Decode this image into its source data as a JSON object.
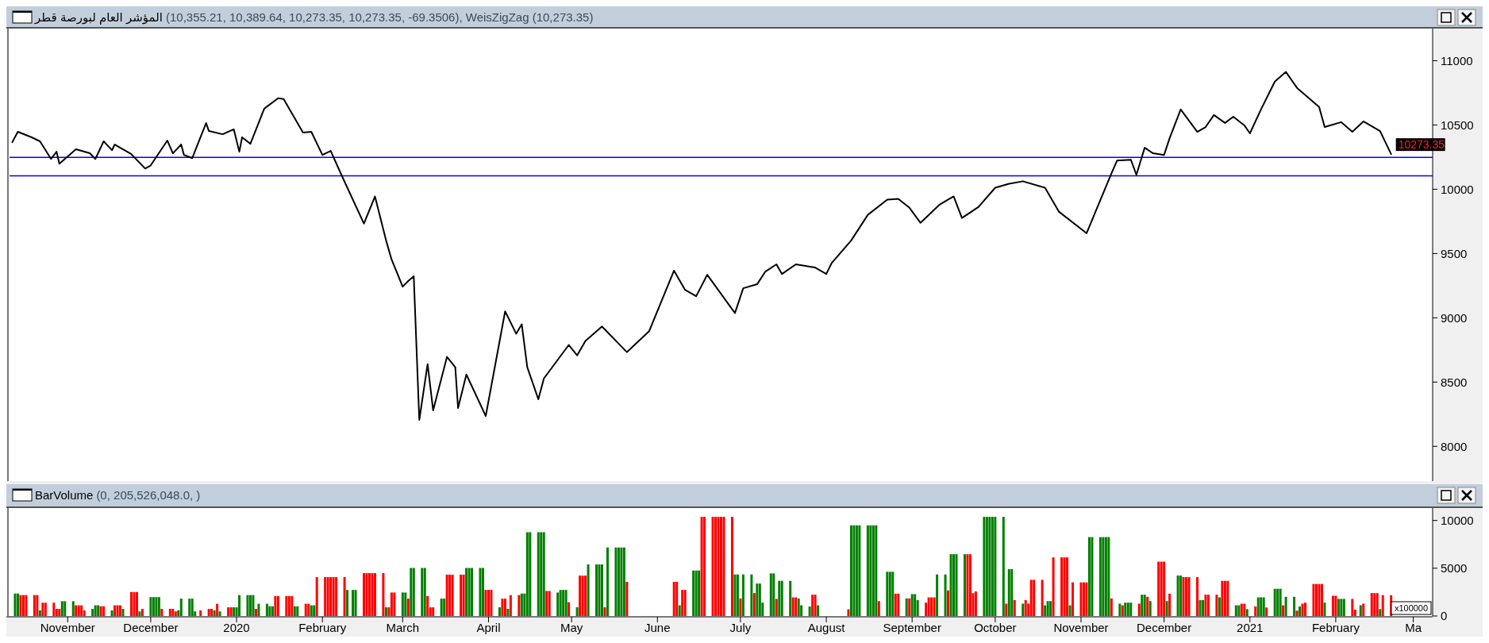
{
  "chart_data": [
    {
      "type": "line",
      "title": "المؤشر العام لبورصة قطر",
      "subtitle": "(10,355.21, 10,389.64, 10,273.35, 10,273.35, -69.3506), WeisZigZag (10,273.35)",
      "color": "#000000",
      "tick_labels": "y",
      "x": [
        "2019-10-12",
        "2019-10-14",
        "2019-10-19",
        "2019-10-22",
        "2019-10-26",
        "2019-10-28",
        "2019-10-29",
        "2019-11-04",
        "2019-11-09",
        "2019-11-11",
        "2019-11-14",
        "2019-11-17",
        "2019-11-18",
        "2019-11-24",
        "2019-11-29",
        "2019-12-01",
        "2019-12-07",
        "2019-12-09",
        "2019-12-12",
        "2019-12-13",
        "2019-12-16",
        "2019-12-21",
        "2019-12-22",
        "2019-12-27",
        "2019-12-31",
        "2020-01-02",
        "2020-01-03",
        "2020-01-06",
        "2020-01-11",
        "2020-01-16",
        "2020-01-18",
        "2020-01-25",
        "2020-01-28",
        "2020-02-01",
        "2020-02-04",
        "2020-02-08",
        "2020-02-16",
        "2020-02-20",
        "2020-02-24",
        "2020-02-26",
        "2020-03-01",
        "2020-03-03",
        "2020-03-05",
        "2020-03-07",
        "2020-03-10",
        "2020-03-12",
        "2020-03-17",
        "2020-03-20",
        "2020-03-21",
        "2020-03-24",
        "2020-03-31",
        "2020-04-07",
        "2020-04-11",
        "2020-04-13",
        "2020-04-15",
        "2020-04-19",
        "2020-04-21",
        "2020-04-30",
        "2020-05-03",
        "2020-05-06",
        "2020-05-12",
        "2020-05-21",
        "2020-05-29",
        "2020-06-07",
        "2020-06-11",
        "2020-06-15",
        "2020-06-19",
        "2020-06-29",
        "2020-07-02",
        "2020-07-07",
        "2020-07-10",
        "2020-07-14",
        "2020-07-16",
        "2020-07-21",
        "2020-07-28",
        "2020-08-01",
        "2020-08-03",
        "2020-08-10",
        "2020-08-16",
        "2020-08-23",
        "2020-08-27",
        "2020-08-31",
        "2020-09-04",
        "2020-09-11",
        "2020-09-16",
        "2020-09-19",
        "2020-09-25",
        "2020-10-01",
        "2020-10-06",
        "2020-10-11",
        "2020-10-19",
        "2020-10-24",
        "2020-11-03",
        "2020-11-12",
        "2020-11-14",
        "2020-11-19",
        "2020-11-21",
        "2020-11-24",
        "2020-11-27",
        "2020-12-01",
        "2020-12-03",
        "2020-12-07",
        "2020-12-13",
        "2020-12-16",
        "2020-12-19",
        "2020-12-23",
        "2020-12-26",
        "2020-12-30",
        "2021-01-01",
        "2021-01-05",
        "2021-01-10",
        "2021-01-14",
        "2021-01-18",
        "2021-01-26",
        "2021-01-28",
        "2021-02-03",
        "2021-02-07",
        "2021-02-11",
        "2021-02-17",
        "2021-02-21"
      ],
      "values": [
        10366,
        10447,
        10404,
        10373,
        10236,
        10292,
        10199,
        10311,
        10280,
        10236,
        10373,
        10304,
        10348,
        10273,
        10161,
        10186,
        10379,
        10280,
        10348,
        10267,
        10242,
        10515,
        10453,
        10428,
        10466,
        10292,
        10404,
        10354,
        10627,
        10708,
        10702,
        10441,
        10447,
        10267,
        10298,
        10106,
        9733,
        9944,
        9602,
        9453,
        9242,
        9286,
        9323,
        8205,
        8640,
        8280,
        8696,
        8615,
        8298,
        8559,
        8236,
        9050,
        8876,
        8950,
        8615,
        8366,
        8528,
        8789,
        8708,
        8820,
        8932,
        8733,
        8895,
        9367,
        9217,
        9168,
        9335,
        9037,
        9230,
        9261,
        9360,
        9416,
        9341,
        9416,
        9391,
        9341,
        9428,
        9602,
        9801,
        9919,
        9925,
        9857,
        9739,
        9882,
        9944,
        9776,
        9863,
        10012,
        10043,
        10062,
        10012,
        9826,
        9658,
        10124,
        10223,
        10230,
        10112,
        10323,
        10280,
        10267,
        10397,
        10621,
        10447,
        10484,
        10578,
        10516,
        10565,
        10497,
        10435,
        10621,
        10838,
        10913,
        10789,
        10640,
        10484,
        10522,
        10447,
        10528,
        10453,
        10273.35
      ],
      "xlim": [
        "2019-10-11",
        "2021-03-08"
      ],
      "ylim": [
        7730,
        11250
      ],
      "yticks": [
        8000,
        8500,
        9000,
        9500,
        10000,
        10500,
        11000
      ],
      "ref_lines": [
        {
          "axis": "y",
          "value": 10248,
          "color": "#0000ff"
        },
        {
          "axis": "y",
          "value": 10105,
          "color": "#0000ff"
        }
      ],
      "annotations": [
        {
          "text": "10273.35",
          "x": "2021-02-21",
          "y": 10273.35
        }
      ]
    },
    {
      "type": "bar",
      "title": "BarVolume",
      "subtitle": "(0, 205,526,048.0, )",
      "x": [
        "2019-10-13",
        "2019-10-14",
        "2019-10-15",
        "2019-10-16",
        "2019-10-17",
        "2019-10-20",
        "2019-10-21",
        "2019-10-22",
        "2019-10-23",
        "2019-10-24",
        "2019-10-27",
        "2019-10-28",
        "2019-10-29",
        "2019-10-30",
        "2019-10-31",
        "2019-11-03",
        "2019-11-04",
        "2019-11-05",
        "2019-11-06",
        "2019-11-07",
        "2019-11-10",
        "2019-11-11",
        "2019-11-12",
        "2019-11-13",
        "2019-11-14",
        "2019-11-17",
        "2019-11-18",
        "2019-11-19",
        "2019-11-20",
        "2019-11-21",
        "2019-11-24",
        "2019-11-25",
        "2019-11-26",
        "2019-11-27",
        "2019-11-28",
        "2019-12-01",
        "2019-12-02",
        "2019-12-03",
        "2019-12-04",
        "2019-12-05",
        "2019-12-08",
        "2019-12-09",
        "2019-12-10",
        "2019-12-11",
        "2019-12-12",
        "2019-12-15",
        "2019-12-16",
        "2019-12-17",
        "2019-12-19",
        "2019-12-22",
        "2019-12-23",
        "2019-12-24",
        "2019-12-25",
        "2019-12-26",
        "2019-12-29",
        "2019-12-30",
        "2019-12-31",
        "2020-01-01",
        "2020-01-02",
        "2020-01-05",
        "2020-01-06",
        "2020-01-07",
        "2020-01-08",
        "2020-01-09",
        "2020-01-12",
        "2020-01-13",
        "2020-01-14",
        "2020-01-15",
        "2020-01-16",
        "2020-01-19",
        "2020-01-20",
        "2020-01-21",
        "2020-01-22",
        "2020-01-23",
        "2020-01-26",
        "2020-01-27",
        "2020-01-28",
        "2020-01-29",
        "2020-01-30",
        "2020-02-02",
        "2020-02-03",
        "2020-02-04",
        "2020-02-05",
        "2020-02-06",
        "2020-02-09",
        "2020-02-10",
        "2020-02-12",
        "2020-02-13",
        "2020-02-16",
        "2020-02-17",
        "2020-02-18",
        "2020-02-19",
        "2020-02-20",
        "2020-02-23",
        "2020-02-24",
        "2020-02-25",
        "2020-02-26",
        "2020-02-27",
        "2020-03-01",
        "2020-03-02",
        "2020-03-03",
        "2020-03-04",
        "2020-03-05",
        "2020-03-08",
        "2020-03-09",
        "2020-03-10",
        "2020-03-11",
        "2020-03-12",
        "2020-03-15",
        "2020-03-16",
        "2020-03-17",
        "2020-03-18",
        "2020-03-19",
        "2020-03-22",
        "2020-03-23",
        "2020-03-24",
        "2020-03-25",
        "2020-03-26",
        "2020-03-29",
        "2020-03-30",
        "2020-03-31",
        "2020-04-01",
        "2020-04-02",
        "2020-04-05",
        "2020-04-06",
        "2020-04-07",
        "2020-04-08",
        "2020-04-09",
        "2020-04-12",
        "2020-04-13",
        "2020-04-14",
        "2020-04-15",
        "2020-04-16",
        "2020-04-19",
        "2020-04-20",
        "2020-04-21",
        "2020-04-22",
        "2020-04-23",
        "2020-04-26",
        "2020-04-27",
        "2020-04-28",
        "2020-04-29",
        "2020-04-30",
        "2020-05-03",
        "2020-05-04",
        "2020-05-05",
        "2020-05-06",
        "2020-05-07",
        "2020-05-10",
        "2020-05-11",
        "2020-05-12",
        "2020-05-13",
        "2020-05-14",
        "2020-05-17",
        "2020-05-18",
        "2020-05-19",
        "2020-05-20",
        "2020-05-21",
        "2020-06-07",
        "2020-06-08",
        "2020-06-09",
        "2020-06-10",
        "2020-06-11",
        "2020-06-14",
        "2020-06-15",
        "2020-06-16",
        "2020-06-17",
        "2020-06-18",
        "2020-06-21",
        "2020-06-22",
        "2020-06-23",
        "2020-06-24",
        "2020-06-25",
        "2020-06-28",
        "2020-06-29",
        "2020-06-30",
        "2020-07-01",
        "2020-07-02",
        "2020-07-05",
        "2020-07-06",
        "2020-07-07",
        "2020-07-08",
        "2020-07-09",
        "2020-07-12",
        "2020-07-13",
        "2020-07-14",
        "2020-07-15",
        "2020-07-16",
        "2020-07-19",
        "2020-07-20",
        "2020-07-21",
        "2020-07-22",
        "2020-07-23",
        "2020-07-26",
        "2020-07-27",
        "2020-07-28",
        "2020-07-29",
        "2020-08-09",
        "2020-08-10",
        "2020-08-11",
        "2020-08-12",
        "2020-08-13",
        "2020-08-16",
        "2020-08-17",
        "2020-08-18",
        "2020-08-19",
        "2020-08-20",
        "2020-08-23",
        "2020-08-24",
        "2020-08-25",
        "2020-08-26",
        "2020-08-27",
        "2020-08-30",
        "2020-08-31",
        "2020-09-01",
        "2020-09-02",
        "2020-09-03",
        "2020-09-06",
        "2020-09-07",
        "2020-09-08",
        "2020-09-09",
        "2020-09-10",
        "2020-09-13",
        "2020-09-14",
        "2020-09-15",
        "2020-09-16",
        "2020-09-17",
        "2020-09-20",
        "2020-09-21",
        "2020-09-22",
        "2020-09-23",
        "2020-09-24",
        "2020-09-27",
        "2020-09-28",
        "2020-09-29",
        "2020-09-30",
        "2020-10-01",
        "2020-10-04",
        "2020-10-05",
        "2020-10-06",
        "2020-10-07",
        "2020-10-08",
        "2020-10-11",
        "2020-10-12",
        "2020-10-13",
        "2020-10-14",
        "2020-10-15",
        "2020-10-18",
        "2020-10-19",
        "2020-10-20",
        "2020-10-21",
        "2020-10-22",
        "2020-10-25",
        "2020-10-26",
        "2020-10-27",
        "2020-10-28",
        "2020-10-29",
        "2020-11-01",
        "2020-11-02",
        "2020-11-03",
        "2020-11-04",
        "2020-11-05",
        "2020-11-08",
        "2020-11-09",
        "2020-11-10",
        "2020-11-11",
        "2020-11-12",
        "2020-11-15",
        "2020-11-16",
        "2020-11-17",
        "2020-11-18",
        "2020-11-19",
        "2020-11-22",
        "2020-11-23",
        "2020-11-24",
        "2020-11-25",
        "2020-11-26",
        "2020-11-29",
        "2020-11-30",
        "2020-12-01",
        "2020-12-02",
        "2020-12-03",
        "2020-12-06",
        "2020-12-07",
        "2020-12-08",
        "2020-12-09",
        "2020-12-10",
        "2020-12-13",
        "2020-12-14",
        "2020-12-15",
        "2020-12-16",
        "2020-12-17",
        "2020-12-20",
        "2020-12-21",
        "2020-12-22",
        "2020-12-23",
        "2020-12-24",
        "2020-12-27",
        "2020-12-28",
        "2020-12-29",
        "2020-12-30",
        "2020-12-31",
        "2021-01-03",
        "2021-01-04",
        "2021-01-05",
        "2021-01-06",
        "2021-01-07",
        "2021-01-10",
        "2021-01-11",
        "2021-01-12",
        "2021-01-13",
        "2021-01-14",
        "2021-01-17",
        "2021-01-18",
        "2021-01-19",
        "2021-01-20",
        "2021-01-21",
        "2021-01-24",
        "2021-01-25",
        "2021-01-26",
        "2021-01-27",
        "2021-01-28",
        "2021-01-31",
        "2021-02-01",
        "2021-02-02",
        "2021-02-03",
        "2021-02-04",
        "2021-02-07",
        "2021-02-08",
        "2021-02-10",
        "2021-02-11",
        "2021-02-14",
        "2021-02-15",
        "2021-02-16",
        "2021-02-17",
        "2021-02-18",
        "2021-02-21"
      ],
      "values": [
        2350,
        2350,
        2190,
        2190,
        2190,
        2190,
        2190,
        590,
        1390,
        1390,
        1390,
        750,
        750,
        1550,
        1550,
        1550,
        1120,
        1120,
        1120,
        590,
        750,
        1120,
        1120,
        1020,
        1020,
        590,
        1120,
        1120,
        1120,
        750,
        2510,
        2510,
        2510,
        480,
        750,
        1980,
        1980,
        1980,
        1980,
        750,
        750,
        750,
        480,
        590,
        1820,
        1820,
        1820,
        480,
        590,
        750,
        750,
        590,
        1280,
        480,
        910,
        910,
        910,
        910,
        2190,
        2190,
        2190,
        2190,
        750,
        1280,
        1280,
        1020,
        1020,
        2090,
        2090,
        2090,
        2090,
        2090,
        1020,
        1020,
        1280,
        1280,
        1120,
        1120,
        4070,
        4070,
        4070,
        4070,
        4070,
        4070,
        4070,
        2730,
        2730,
        2730,
        4490,
        4490,
        4490,
        4490,
        4490,
        4490,
        910,
        910,
        2460,
        2460,
        2460,
        2460,
        1820,
        5030,
        5030,
        5030,
        5030,
        2090,
        910,
        910,
        1820,
        1820,
        4330,
        4330,
        4330,
        4330,
        4330,
        5030,
        5030,
        5030,
        5030,
        5030,
        2730,
        2730,
        2730,
        910,
        1820,
        1820,
        750,
        2190,
        2190,
        2350,
        2350,
        8770,
        8770,
        8770,
        8770,
        8770,
        2620,
        2620,
        2460,
        2730,
        2730,
        2730,
        1440,
        910,
        4230,
        4230,
        4230,
        5400,
        5400,
        5400,
        5400,
        910,
        7170,
        7170,
        7170,
        7170,
        7170,
        3580,
        3580,
        3580,
        1120,
        2730,
        2730,
        4760,
        4760,
        4760,
        10380,
        10380,
        10380,
        10380,
        10380,
        10380,
        10380,
        10380,
        4350,
        4350,
        1840,
        4350,
        4350,
        2400,
        3400,
        3400,
        1400,
        4460,
        4460,
        1790,
        3680,
        3680,
        3680,
        1950,
        1950,
        1840,
        1120,
        1000,
        2230,
        2230,
        1120,
        700,
        9490,
        9490,
        9490,
        9490,
        9490,
        9490,
        9490,
        9490,
        1560,
        4630,
        4630,
        4630,
        2340,
        2340,
        1840,
        1840,
        2290,
        2290,
        1670,
        1400,
        1950,
        1950,
        1950,
        4350,
        4350,
        2680,
        6470,
        6470,
        6470,
        6470,
        6470,
        6470,
        2390,
        2570,
        10380,
        10380,
        10380,
        10380,
        10380,
        10380,
        1290,
        4910,
        4910,
        1670,
        1290,
        1670,
        1290,
        3790,
        3790,
        3790,
        1120,
        1560,
        1560,
        6140,
        6140,
        6140,
        6140,
        1120,
        3520,
        3520,
        3520,
        3520,
        8260,
        8260,
        8260,
        8260,
        8260,
        8260,
        1840,
        1290,
        1120,
        1400,
        1400,
        1400,
        1290,
        2230,
        2230,
        2010,
        1560,
        5690,
        5690,
        5690,
        1560,
        2340,
        4240,
        4240,
        4070,
        4070,
        4070,
        4070,
        1670,
        1670,
        2230,
        2230,
        2230,
        1950,
        3680,
        3680,
        3680,
        1120,
        1120,
        1290,
        1290,
        720,
        1000,
        1950,
        1950,
        1950,
        890,
        2850,
        2850,
        2850,
        1120,
        2010,
        2010,
        560,
        1000,
        1290,
        1400,
        3350,
        3350,
        3350,
        3350,
        1400,
        2120,
        2120,
        1790,
        1790,
        1790,
        1790,
        670,
        1120,
        1290,
        2400,
        2400,
        2400,
        720,
        2180,
        2180
      ],
      "colors": [
        "#008000",
        "#008000",
        "#ff0000",
        "#ff0000",
        "#ff0000",
        "#ff0000",
        "#ff0000",
        "#008000",
        "#ff0000",
        "#ff0000",
        "#ff0000",
        "#ff0000",
        "#ff0000",
        "#008000",
        "#008000",
        "#008000",
        "#ff0000",
        "#ff0000",
        "#ff0000",
        "#ff0000",
        "#008000",
        "#008000",
        "#008000",
        "#ff0000",
        "#ff0000",
        "#008000",
        "#ff0000",
        "#ff0000",
        "#ff0000",
        "#008000",
        "#ff0000",
        "#ff0000",
        "#ff0000",
        "#008000",
        "#ff0000",
        "#008000",
        "#008000",
        "#008000",
        "#008000",
        "#ff0000",
        "#ff0000",
        "#ff0000",
        "#ff0000",
        "#008000",
        "#008000",
        "#008000",
        "#008000",
        "#008000",
        "#ff0000",
        "#ff0000",
        "#ff0000",
        "#008000",
        "#ff0000",
        "#008000",
        "#ff0000",
        "#ff0000",
        "#008000",
        "#008000",
        "#008000",
        "#008000",
        "#008000",
        "#008000",
        "#ff0000",
        "#008000",
        "#008000",
        "#008000",
        "#008000",
        "#ff0000",
        "#ff0000",
        "#ff0000",
        "#ff0000",
        "#ff0000",
        "#008000",
        "#008000",
        "#ff0000",
        "#ff0000",
        "#008000",
        "#008000",
        "#ff0000",
        "#ff0000",
        "#ff0000",
        "#ff0000",
        "#ff0000",
        "#ff0000",
        "#ff0000",
        "#008000",
        "#008000",
        "#008000",
        "#ff0000",
        "#ff0000",
        "#ff0000",
        "#ff0000",
        "#ff0000",
        "#ff0000",
        "#008000",
        "#ff0000",
        "#ff0000",
        "#ff0000",
        "#008000",
        "#008000",
        "#ff0000",
        "#008000",
        "#008000",
        "#008000",
        "#008000",
        "#ff0000",
        "#ff0000",
        "#ff0000",
        "#008000",
        "#008000",
        "#ff0000",
        "#ff0000",
        "#ff0000",
        "#ff0000",
        "#ff0000",
        "#008000",
        "#008000",
        "#008000",
        "#008000",
        "#008000",
        "#ff0000",
        "#ff0000",
        "#ff0000",
        "#008000",
        "#ff0000",
        "#ff0000",
        "#008000",
        "#ff0000",
        "#ff0000",
        "#008000",
        "#008000",
        "#008000",
        "#008000",
        "#008000",
        "#008000",
        "#008000",
        "#ff0000",
        "#ff0000",
        "#008000",
        "#008000",
        "#008000",
        "#008000",
        "#ff0000",
        "#008000",
        "#ff0000",
        "#ff0000",
        "#ff0000",
        "#008000",
        "#008000",
        "#008000",
        "#008000",
        "#ff0000",
        "#008000",
        "#008000",
        "#008000",
        "#008000",
        "#008000",
        "#ff0000",
        "#ff0000",
        "#ff0000",
        "#008000",
        "#ff0000",
        "#ff0000",
        "#008000",
        "#008000",
        "#008000",
        "#ff0000",
        "#ff0000",
        "#ff0000",
        "#ff0000",
        "#ff0000",
        "#ff0000",
        "#ff0000",
        "#ff0000",
        "#008000",
        "#008000",
        "#ff0000",
        "#008000",
        "#008000",
        "#ff0000",
        "#008000",
        "#008000",
        "#008000",
        "#008000",
        "#008000",
        "#ff0000",
        "#008000",
        "#008000",
        "#008000",
        "#ff0000",
        "#ff0000",
        "#008000",
        "#008000",
        "#008000",
        "#ff0000",
        "#ff0000",
        "#008000",
        "#ff0000",
        "#008000",
        "#008000",
        "#008000",
        "#008000",
        "#008000",
        "#008000",
        "#008000",
        "#008000",
        "#ff0000",
        "#008000",
        "#008000",
        "#008000",
        "#ff0000",
        "#ff0000",
        "#008000",
        "#ff0000",
        "#008000",
        "#008000",
        "#008000",
        "#ff0000",
        "#ff0000",
        "#ff0000",
        "#ff0000",
        "#008000",
        "#008000",
        "#ff0000",
        "#008000",
        "#008000",
        "#008000",
        "#008000",
        "#ff0000",
        "#ff0000",
        "#ff0000",
        "#ff0000",
        "#008000",
        "#008000",
        "#008000",
        "#008000",
        "#008000",
        "#008000",
        "#ff0000",
        "#008000",
        "#008000",
        "#ff0000",
        "#008000",
        "#ff0000",
        "#ff0000",
        "#ff0000",
        "#ff0000",
        "#ff0000",
        "#008000",
        "#008000",
        "#008000",
        "#ff0000",
        "#ff0000",
        "#ff0000",
        "#ff0000",
        "#008000",
        "#ff0000",
        "#ff0000",
        "#ff0000",
        "#ff0000",
        "#008000",
        "#008000",
        "#008000",
        "#008000",
        "#008000",
        "#008000",
        "#ff0000",
        "#008000",
        "#ff0000",
        "#008000",
        "#008000",
        "#008000",
        "#ff0000",
        "#008000",
        "#008000",
        "#ff0000",
        "#008000",
        "#ff0000",
        "#ff0000",
        "#ff0000",
        "#008000",
        "#ff0000",
        "#008000",
        "#008000",
        "#ff0000",
        "#ff0000",
        "#ff0000",
        "#ff0000",
        "#008000",
        "#008000",
        "#ff0000",
        "#ff0000",
        "#ff0000",
        "#008000",
        "#ff0000",
        "#ff0000",
        "#ff0000",
        "#008000",
        "#008000",
        "#ff0000",
        "#ff0000",
        "#008000",
        "#ff0000",
        "#008000",
        "#008000",
        "#008000",
        "#ff0000",
        "#008000",
        "#008000",
        "#008000",
        "#ff0000",
        "#008000",
        "#008000",
        "#ff0000",
        "#008000",
        "#ff0000",
        "#ff0000",
        "#ff0000",
        "#ff0000",
        "#ff0000",
        "#ff0000",
        "#008000",
        "#ff0000",
        "#ff0000",
        "#008000",
        "#008000",
        "#008000",
        "#ff0000",
        "#ff0000",
        "#008000",
        "#ff0000",
        "#ff0000",
        "#ff0000",
        "#ff0000",
        "#008000",
        "#ff0000",
        "#ff0000"
      ],
      "xlim": [
        "2019-10-11",
        "2021-03-08"
      ],
      "xticks": [
        {
          "value": "2019-11-01",
          "label": "November"
        },
        {
          "value": "2019-12-01",
          "label": "December"
        },
        {
          "value": "2020-01-01",
          "label": "2020"
        },
        {
          "value": "2020-02-01",
          "label": "February"
        },
        {
          "value": "2020-03-01",
          "label": "March"
        },
        {
          "value": "2020-04-01",
          "label": "April"
        },
        {
          "value": "2020-05-01",
          "label": "May"
        },
        {
          "value": "2020-06-01",
          "label": "June"
        },
        {
          "value": "2020-07-01",
          "label": "July"
        },
        {
          "value": "2020-08-01",
          "label": "August"
        },
        {
          "value": "2020-09-01",
          "label": "September"
        },
        {
          "value": "2020-10-01",
          "label": "October"
        },
        {
          "value": "2020-11-01",
          "label": "November"
        },
        {
          "value": "2020-12-01",
          "label": "December"
        },
        {
          "value": "2021-01-01",
          "label": "2021"
        },
        {
          "value": "2021-02-01",
          "label": "February"
        },
        {
          "value": "2021-03-01",
          "label": "Ma"
        }
      ],
      "ylim": [
        0,
        11300
      ],
      "yticks": [
        0,
        5000,
        10000
      ],
      "annotations": [
        "x100000"
      ]
    }
  ]
}
